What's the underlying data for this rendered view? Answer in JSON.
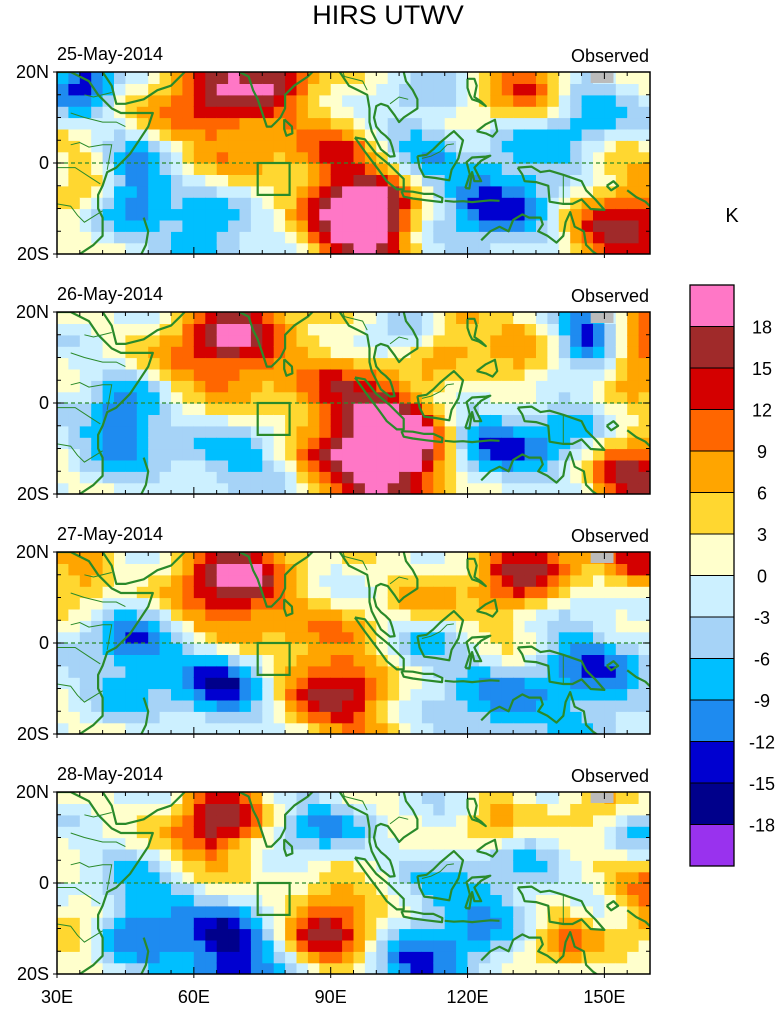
{
  "chart_data": {
    "type": "heatmap",
    "title": "HIRS UTWV",
    "units": "K",
    "panel_tag": "Observed",
    "panels": [
      {
        "date": "25-May-2014",
        "hot": [
          [
            66,
            16,
            10,
            1.0
          ],
          [
            92,
            -8,
            12,
            1.1
          ],
          [
            99,
            -13,
            6,
            1.0
          ],
          [
            134,
            17,
            8,
            1.0
          ],
          [
            154,
            -15,
            10,
            1.0
          ],
          [
            80,
            20,
            5,
            0.6
          ],
          [
            36,
            -4,
            5,
            0.5
          ],
          [
            120,
            5,
            6,
            0.4
          ]
        ],
        "cold": [
          [
            47,
            -5,
            6,
            1.0
          ],
          [
            62,
            -17,
            6,
            0.8
          ],
          [
            36,
            18,
            5,
            1.0
          ],
          [
            126,
            -6,
            12,
            0.9
          ],
          [
            143,
            12,
            8,
            0.8
          ],
          [
            108,
            6,
            8,
            0.6
          ],
          [
            80,
            -10,
            8,
            0.6
          ]
        ]
      },
      {
        "date": "26-May-2014",
        "hot": [
          [
            67,
            13,
            9,
            1.1
          ],
          [
            96,
            -9,
            14,
            1.3
          ],
          [
            105,
            -10,
            6,
            0.9
          ],
          [
            157,
            -17,
            8,
            1.0
          ],
          [
            131,
            8,
            6,
            0.6
          ],
          [
            158,
            12,
            6,
            0.9
          ],
          [
            118,
            18,
            5,
            0.5
          ]
        ],
        "cold": [
          [
            44,
            -5,
            6,
            1.0
          ],
          [
            75,
            -13,
            12,
            0.8
          ],
          [
            125,
            -8,
            8,
            0.9
          ],
          [
            147,
            15,
            6,
            1.0
          ],
          [
            104,
            15,
            6,
            0.6
          ],
          [
            142,
            -8,
            6,
            0.6
          ]
        ]
      },
      {
        "date": "27-May-2014",
        "hot": [
          [
            68,
            13,
            9,
            1.2
          ],
          [
            93,
            -9,
            10,
            1.0
          ],
          [
            134,
            15,
            10,
            1.0
          ],
          [
            158,
            17,
            5,
            0.7
          ],
          [
            108,
            8,
            6,
            0.6
          ],
          [
            35,
            15,
            5,
            0.6
          ]
        ],
        "cold": [
          [
            67,
            -9,
            7,
            1.0
          ],
          [
            107,
            0,
            8,
            0.8
          ],
          [
            47,
            -2,
            8,
            0.8
          ],
          [
            146,
            -7,
            9,
            0.8
          ],
          [
            140,
            8,
            6,
            0.6
          ],
          [
            125,
            -15,
            8,
            0.6
          ]
        ]
      },
      {
        "date": "28-May-2014",
        "hot": [
          [
            65,
            13,
            7,
            1.1
          ],
          [
            90,
            -9,
            8,
            1.0
          ],
          [
            140,
            -12,
            6,
            0.6
          ],
          [
            160,
            -3,
            6,
            0.7
          ],
          [
            125,
            12,
            6,
            0.6
          ],
          [
            35,
            -10,
            5,
            0.5
          ],
          [
            150,
            15,
            6,
            0.6
          ]
        ],
        "cold": [
          [
            68,
            -16,
            8,
            1.2
          ],
          [
            48,
            -8,
            8,
            0.8
          ],
          [
            110,
            -20,
            10,
            0.8
          ],
          [
            87,
            10,
            7,
            0.6
          ],
          [
            126,
            0,
            10,
            0.6
          ],
          [
            155,
            12,
            6,
            0.6
          ]
        ]
      }
    ],
    "x_ticks": [
      "30E",
      "60E",
      "90E",
      "120E",
      "150E"
    ],
    "y_ticks": [
      "20N",
      "0",
      "20S"
    ],
    "xlim": [
      30,
      160
    ],
    "ylim": [
      -20,
      20
    ],
    "colorbar_levels": [
      "18",
      "15",
      "12",
      "9",
      "6",
      "3",
      "0",
      "-3",
      "-6",
      "-9",
      "-12",
      "-15",
      "-18"
    ],
    "colorbar_colors": [
      "#ff77c6",
      "#a02a2a",
      "#d40000",
      "#ff6600",
      "#ffa500",
      "#ffd730",
      "#ffffcc",
      "#ccf0ff",
      "#a6d3f7",
      "#00bfff",
      "#1e8bf0",
      "#0000d0",
      "#00008b",
      "#9932ee"
    ],
    "box_region": {
      "lon": [
        74,
        81
      ],
      "lat": [
        -7,
        0
      ]
    }
  },
  "colors": {
    "coast": "#2a8a2a",
    "equator": "#2a8a2a",
    "missing": "#bbbbbb"
  }
}
